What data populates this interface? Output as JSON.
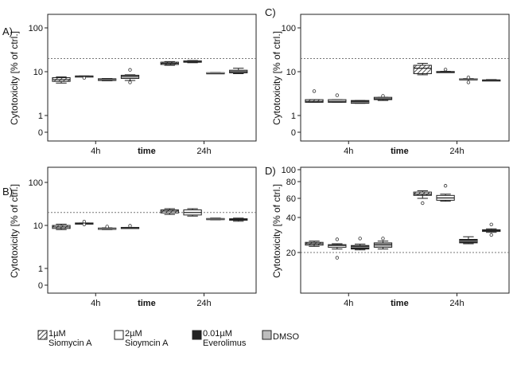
{
  "chart_data": [
    {
      "panel": "A)",
      "type": "box",
      "ylabel": "Cytotoxicity [% of ctrl.]",
      "xlabel": "time",
      "categories": [
        "4h",
        "24h"
      ],
      "yscale": "log",
      "yticks": [
        {
          "v": 0,
          "label": "0"
        },
        {
          "v": 1,
          "label": "1"
        },
        {
          "v": 10,
          "label": "10"
        },
        {
          "v": 100,
          "label": "100"
        }
      ],
      "reference_line": 20,
      "boxes": [
        {
          "series": 0,
          "cat": 0,
          "min": 5.5,
          "q1": 6.0,
          "med": 6.6,
          "q3": 7.3,
          "max": 7.6,
          "outliers": []
        },
        {
          "series": 1,
          "cat": 0,
          "min": 7.8,
          "q1": 7.8,
          "med": 7.9,
          "q3": 8.0,
          "max": 8.0,
          "outliers": [
            7.2
          ]
        },
        {
          "series": 2,
          "cat": 0,
          "min": 6.2,
          "q1": 6.3,
          "med": 6.6,
          "q3": 6.9,
          "max": 7.0,
          "outliers": []
        },
        {
          "series": 3,
          "cat": 0,
          "min": 6.3,
          "q1": 7.0,
          "med": 7.8,
          "q3": 8.3,
          "max": 8.5,
          "outliers": [
            5.7,
            11.0
          ]
        },
        {
          "series": 0,
          "cat": 1,
          "min": 14.0,
          "q1": 14.6,
          "med": 15.5,
          "q3": 16.5,
          "max": 17.0,
          "outliers": []
        },
        {
          "series": 1,
          "cat": 1,
          "min": 16.0,
          "q1": 16.4,
          "med": 17.0,
          "q3": 17.7,
          "max": 18.0,
          "outliers": []
        },
        {
          "series": 2,
          "cat": 1,
          "min": 9.2,
          "q1": 9.3,
          "med": 9.4,
          "q3": 9.5,
          "max": 9.6,
          "outliers": []
        },
        {
          "series": 3,
          "cat": 1,
          "min": 9.0,
          "q1": 9.4,
          "med": 10.0,
          "q3": 10.8,
          "max": 12.0,
          "outliers": []
        }
      ]
    },
    {
      "panel": "B)",
      "type": "box",
      "ylabel": "Cytotoxicity [% of ctrl.]",
      "xlabel": "time",
      "categories": [
        "4h",
        "24h"
      ],
      "yscale": "log",
      "yticks": [
        {
          "v": 0,
          "label": "0"
        },
        {
          "v": 1,
          "label": "1"
        },
        {
          "v": 10,
          "label": "10"
        },
        {
          "v": 100,
          "label": "100"
        }
      ],
      "reference_line": 20,
      "boxes": [
        {
          "series": 0,
          "cat": 0,
          "min": 8.0,
          "q1": 8.5,
          "med": 9.2,
          "q3": 10.0,
          "max": 10.7,
          "outliers": []
        },
        {
          "series": 1,
          "cat": 0,
          "min": 11.0,
          "q1": 11.0,
          "med": 11.2,
          "q3": 11.4,
          "max": 11.4,
          "outliers": [
            10.5,
            12.3
          ]
        },
        {
          "series": 2,
          "cat": 0,
          "min": 8.0,
          "q1": 8.1,
          "med": 8.4,
          "q3": 8.7,
          "max": 8.8,
          "outliers": [
            9.4
          ]
        },
        {
          "series": 3,
          "cat": 0,
          "min": 8.8,
          "q1": 8.8,
          "med": 8.9,
          "q3": 9.0,
          "max": 9.0,
          "outliers": [
            9.8
          ]
        },
        {
          "series": 0,
          "cat": 1,
          "min": 18.0,
          "q1": 19.5,
          "med": 21.5,
          "q3": 23.0,
          "max": 24.5,
          "outliers": []
        },
        {
          "series": 1,
          "cat": 1,
          "min": 16.5,
          "q1": 17.5,
          "med": 20.0,
          "q3": 23.0,
          "max": 24.5,
          "outliers": []
        },
        {
          "series": 2,
          "cat": 1,
          "min": 13.5,
          "q1": 13.8,
          "med": 14.1,
          "q3": 14.5,
          "max": 14.8,
          "outliers": []
        },
        {
          "series": 3,
          "cat": 1,
          "min": 12.5,
          "q1": 13.2,
          "med": 13.8,
          "q3": 14.3,
          "max": 14.8,
          "outliers": []
        }
      ]
    },
    {
      "panel": "C)",
      "type": "box",
      "ylabel": "Cytotoxicity [% of ctrl.]",
      "xlabel": "time",
      "categories": [
        "4h",
        "24h"
      ],
      "yscale": "log",
      "yticks": [
        {
          "v": 0,
          "label": "0"
        },
        {
          "v": 1,
          "label": "1"
        },
        {
          "v": 10,
          "label": "10"
        },
        {
          "v": 100,
          "label": "100"
        }
      ],
      "reference_line": 20,
      "boxes": [
        {
          "series": 0,
          "cat": 0,
          "min": 2.0,
          "q1": 2.0,
          "med": 2.1,
          "q3": 2.3,
          "max": 2.3,
          "outliers": [
            3.6
          ]
        },
        {
          "series": 1,
          "cat": 0,
          "min": 2.0,
          "q1": 2.0,
          "med": 2.1,
          "q3": 2.3,
          "max": 2.3,
          "outliers": [
            2.9
          ]
        },
        {
          "series": 2,
          "cat": 0,
          "min": 1.9,
          "q1": 1.9,
          "med": 2.0,
          "q3": 2.2,
          "max": 2.2,
          "outliers": []
        },
        {
          "series": 3,
          "cat": 0,
          "min": 2.2,
          "q1": 2.3,
          "med": 2.4,
          "q3": 2.6,
          "max": 2.6,
          "outliers": [
            2.8
          ]
        },
        {
          "series": 0,
          "cat": 1,
          "min": 8.5,
          "q1": 9.0,
          "med": 12.0,
          "q3": 14.0,
          "max": 15.5,
          "outliers": []
        },
        {
          "series": 1,
          "cat": 1,
          "min": 9.6,
          "q1": 9.7,
          "med": 9.9,
          "q3": 10.1,
          "max": 10.2,
          "outliers": [
            11.2
          ]
        },
        {
          "series": 2,
          "cat": 1,
          "min": 6.6,
          "q1": 6.7,
          "med": 6.8,
          "q3": 6.9,
          "max": 7.0,
          "outliers": [
            5.7,
            7.4
          ]
        },
        {
          "series": 3,
          "cat": 1,
          "min": 6.2,
          "q1": 6.3,
          "med": 6.4,
          "q3": 6.5,
          "max": 6.6,
          "outliers": []
        }
      ]
    },
    {
      "panel": "D)",
      "type": "box",
      "ylabel": "Cytotoxicity [% of ctrl.]",
      "xlabel": "time",
      "categories": [
        "4h",
        "24h"
      ],
      "yscale": "linear",
      "yticks": [
        {
          "v": 20,
          "label": "20"
        },
        {
          "v": 40,
          "label": "40"
        },
        {
          "v": 60,
          "label": "60"
        },
        {
          "v": 80,
          "label": "80"
        },
        {
          "v": 100,
          "label": "100"
        }
      ],
      "reference_line": 20,
      "boxes": [
        {
          "series": 0,
          "cat": 0,
          "min": 23.5,
          "q1": 24.2,
          "med": 25.0,
          "q3": 25.8,
          "max": 26.5,
          "outliers": []
        },
        {
          "series": 1,
          "cat": 0,
          "min": 22.0,
          "q1": 23.0,
          "med": 24.0,
          "q3": 24.5,
          "max": 25.0,
          "outliers": [
            17.0,
            27.5
          ]
        },
        {
          "series": 2,
          "cat": 0,
          "min": 21.5,
          "q1": 22.0,
          "med": 23.0,
          "q3": 24.0,
          "max": 24.8,
          "outliers": [
            28.0
          ]
        },
        {
          "series": 3,
          "cat": 0,
          "min": 22.0,
          "q1": 23.0,
          "med": 24.5,
          "q3": 25.5,
          "max": 26.5,
          "outliers": [
            28.0
          ]
        },
        {
          "series": 0,
          "cat": 1,
          "min": 60.0,
          "q1": 63.5,
          "med": 65.0,
          "q3": 67.5,
          "max": 69.0,
          "outliers": [
            55.0
          ]
        },
        {
          "series": 1,
          "cat": 1,
          "min": 57.0,
          "q1": 58.0,
          "med": 60.5,
          "q3": 63.5,
          "max": 65.0,
          "outliers": [
            75.0
          ]
        },
        {
          "series": 2,
          "cat": 1,
          "min": 25.0,
          "q1": 25.5,
          "med": 26.5,
          "q3": 27.5,
          "max": 29.0,
          "outliers": []
        },
        {
          "series": 3,
          "cat": 1,
          "min": 31.5,
          "q1": 32.0,
          "med": 32.5,
          "q3": 33.0,
          "max": 33.5,
          "outliers": [
            30.0,
            36.0
          ]
        }
      ]
    }
  ],
  "legend": [
    {
      "line1": "1µM",
      "line2": "Siomycin A",
      "fill": "hatch"
    },
    {
      "line1": "2µM",
      "line2": "Sioymcin A",
      "fill": "#ffffff"
    },
    {
      "line1": "0.01µM",
      "line2": "Everolimus",
      "fill": "#222222"
    },
    {
      "line1": "DMSO",
      "line2": "",
      "fill": "#bdbdbd"
    }
  ],
  "colors": {
    "white": "#ffffff",
    "black": "#222222",
    "dmso": "#bdbdbd",
    "reference_line": "#777777"
  }
}
